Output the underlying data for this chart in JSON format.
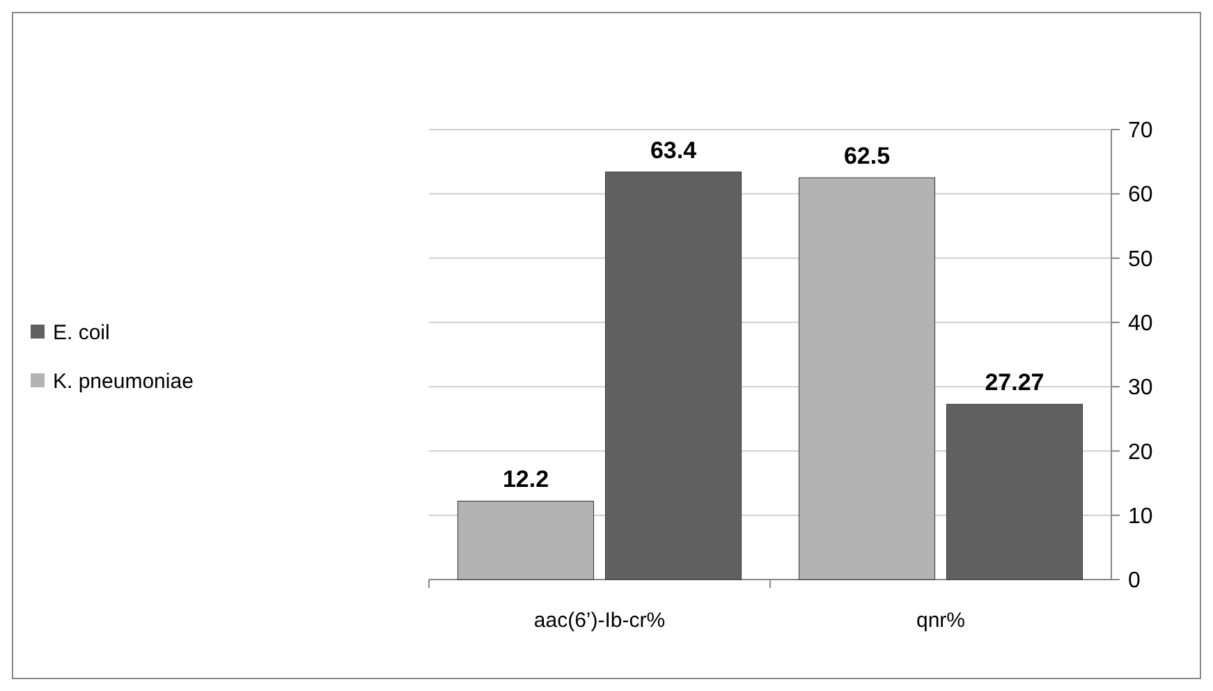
{
  "chart_data": {
    "type": "bar",
    "categories": [
      "aac(6’)-Ib-cr%",
      "qnr%"
    ],
    "series": [
      {
        "name": "K. pneumoniae",
        "color": "#b3b3b3",
        "values": [
          12.2,
          62.5
        ]
      },
      {
        "name": "E. coil",
        "color": "#606060",
        "values": [
          63.4,
          27.27
        ]
      }
    ],
    "ylim": [
      0,
      70
    ],
    "yticks": [
      0,
      10,
      20,
      30,
      40,
      50,
      60,
      70
    ],
    "grid": "y",
    "legend": "left",
    "data_labels": true
  }
}
